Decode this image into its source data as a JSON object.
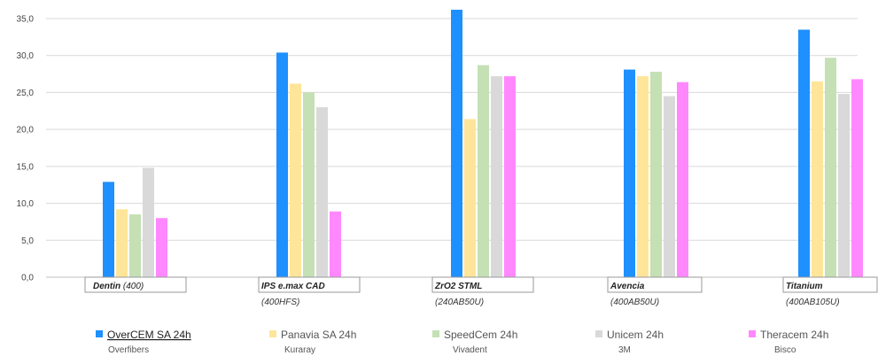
{
  "chart_data": {
    "type": "bar",
    "title": "",
    "xlabel": "",
    "ylabel": "",
    "ylim": [
      0,
      35
    ],
    "yticks": [
      "0,0",
      "5,0",
      "10,0",
      "15,0",
      "20,0",
      "25,0",
      "30,0",
      "35,0"
    ],
    "grid": true,
    "legend_position": "bottom",
    "categories": [
      {
        "name": "Dentin",
        "detail": "(400)"
      },
      {
        "name": "IPS e.max CAD",
        "detail": "(400HFS)"
      },
      {
        "name": "ZrO2 STML",
        "detail": "(240AB50U)"
      },
      {
        "name": "Avencia",
        "detail": "(400AB50U)"
      },
      {
        "name": "Titanium",
        "detail": "(400AB105U)"
      }
    ],
    "series": [
      {
        "name": "OverCEM SA 24h",
        "maker": "Overfibers",
        "color": "#1e90ff",
        "values": [
          12.9,
          30.4,
          36.2,
          28.1,
          33.5
        ]
      },
      {
        "name": "Panavia SA 24h",
        "maker": "Kuraray",
        "color": "#ffe599",
        "values": [
          9.2,
          26.2,
          21.4,
          27.2,
          26.5
        ]
      },
      {
        "name": "SpeedCem 24h",
        "maker": "Vivadent",
        "color": "#c5e0b4",
        "values": [
          8.5,
          25.0,
          28.7,
          27.8,
          29.7
        ]
      },
      {
        "name": "Unicem 24h",
        "maker": "3M",
        "color": "#d9d9d9",
        "values": [
          14.8,
          23.0,
          27.2,
          24.5,
          24.8
        ]
      },
      {
        "name": "Theracem 24h",
        "maker": "Bisco",
        "color": "#ff88ff",
        "values": [
          8.0,
          8.9,
          27.2,
          26.4,
          26.8
        ]
      }
    ]
  }
}
